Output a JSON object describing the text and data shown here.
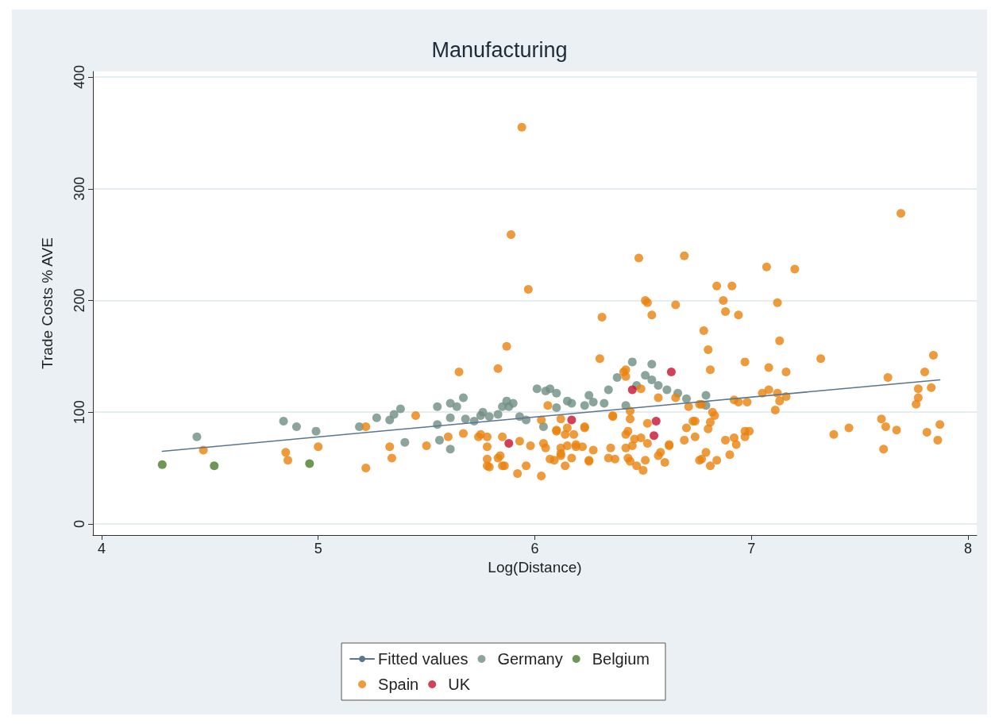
{
  "chart_data": {
    "type": "scatter",
    "title": "Manufacturing",
    "xlabel": "Log(Distance)",
    "ylabel": "Trade Costs % AVE",
    "xlim": [
      3.96,
      8.04
    ],
    "xticks": [
      4,
      5,
      6,
      7,
      8
    ],
    "ylim": [
      -10,
      405
    ],
    "yticks": [
      0,
      100,
      200,
      300,
      400
    ],
    "grid": "y",
    "legend": "bottom",
    "marker": "circle",
    "series": [
      {
        "name": "Fitted values",
        "type": "line",
        "marker": "none",
        "line_style": "solid",
        "color": "#5a7590",
        "x": [
          4.28,
          7.87
        ],
        "values": [
          65,
          129
        ]
      },
      {
        "name": "Germany",
        "color": "#6e8f85",
        "x": [
          4.44,
          4.84,
          4.9,
          4.99,
          5.19,
          5.27,
          5.33,
          5.35,
          5.38,
          5.4,
          5.55,
          5.55,
          5.61,
          5.61,
          5.64,
          5.67,
          5.68,
          5.72,
          5.75,
          5.76,
          5.79,
          5.83,
          5.85,
          5.87,
          5.88,
          5.9,
          5.93,
          5.96,
          6.01,
          6.05,
          6.07,
          6.1,
          6.04,
          6.1,
          6.15,
          6.17,
          6.23,
          6.25,
          6.27,
          6.32,
          6.34,
          6.38,
          6.42,
          6.45,
          6.47,
          6.51,
          6.54,
          6.54,
          6.57,
          6.61,
          6.66,
          6.7,
          6.79,
          6.79,
          5.56,
          5.61
        ],
        "values": [
          78,
          92,
          87,
          83,
          87,
          95,
          93,
          98,
          103,
          73,
          105,
          89,
          95,
          108,
          105,
          113,
          94,
          92,
          97,
          100,
          96,
          98,
          105,
          110,
          105,
          108,
          96,
          93,
          121,
          119,
          121,
          117,
          87,
          104,
          110,
          108,
          106,
          115,
          109,
          108,
          120,
          131,
          106,
          145,
          124,
          133,
          143,
          129,
          124,
          120,
          117,
          112,
          115,
          106,
          75,
          67
        ]
      },
      {
        "name": "Belgium",
        "color": "#4a7c2a",
        "x": [
          4.28,
          4.52,
          4.96
        ],
        "values": [
          53,
          52,
          54
        ]
      },
      {
        "name": "Spain",
        "color": "#e8820c",
        "x": [
          4.47,
          4.85,
          4.86,
          5.0,
          5.22,
          5.22,
          5.33,
          5.34,
          5.45,
          5.5,
          5.65,
          5.67,
          5.75,
          5.78,
          5.78,
          5.78,
          5.83,
          5.83,
          5.86,
          5.87,
          5.89,
          5.92,
          5.94,
          5.96,
          5.97,
          5.98,
          6.03,
          6.04,
          6.06,
          6.1,
          6.12,
          6.14,
          6.14,
          6.15,
          6.19,
          6.23,
          6.25,
          6.27,
          6.3,
          6.31,
          6.34,
          6.36,
          6.41,
          6.42,
          6.44,
          6.45,
          6.48,
          6.49,
          6.5,
          6.51,
          6.52,
          6.54,
          6.65,
          6.69,
          6.84,
          6.91,
          6.87,
          6.88,
          6.94,
          6.78,
          7.07,
          7.2,
          7.12,
          7.13,
          7.69,
          6.8,
          6.81,
          6.97,
          7.08,
          7.16,
          7.32,
          7.63,
          7.8,
          7.84,
          7.77,
          7.83,
          7.77,
          7.76,
          6.92,
          6.94,
          6.98,
          7.05,
          7.08,
          7.12,
          7.16,
          7.13,
          7.11,
          6.77,
          6.74,
          6.82,
          6.83,
          6.81,
          6.8,
          6.74,
          6.88,
          6.92,
          6.93,
          6.97,
          6.99,
          6.97,
          6.79,
          6.77,
          6.84,
          6.81,
          6.9,
          7.38,
          7.45,
          7.6,
          7.62,
          7.67,
          7.61,
          7.81,
          7.87,
          7.86,
          6.42,
          6.42,
          6.49,
          6.57,
          6.65,
          6.71,
          6.76,
          6.03,
          6.12,
          6.36,
          6.44,
          6.44,
          5.6,
          5.74,
          5.85,
          5.93,
          6.1,
          6.15,
          6.18,
          6.23,
          6.43,
          6.46,
          6.52,
          6.52,
          6.58,
          6.62,
          6.7,
          6.73,
          6.69,
          6.76,
          5.78,
          5.79,
          5.84,
          5.85,
          6.05,
          6.07,
          6.09,
          6.12,
          6.12,
          6.17,
          6.19,
          6.22,
          6.25,
          6.35,
          6.37,
          6.42,
          6.43,
          6.47,
          6.51,
          6.57,
          6.6,
          6.62
        ],
        "values": [
          66,
          64,
          57,
          69,
          50,
          87,
          69,
          59,
          97,
          70,
          136,
          81,
          80,
          78,
          69,
          52,
          59,
          139,
          52,
          159,
          259,
          45,
          355,
          52,
          210,
          70,
          43,
          72,
          106,
          84,
          61,
          52,
          80,
          70,
          71,
          87,
          56,
          66,
          148,
          185,
          59,
          97,
          136,
          80,
          56,
          70,
          238,
          77,
          48,
          200,
          198,
          187,
          196,
          240,
          213,
          213,
          200,
          190,
          187,
          173,
          230,
          228,
          198,
          164,
          278,
          156,
          138,
          145,
          140,
          136,
          148,
          131,
          136,
          151,
          121,
          122,
          113,
          107,
          111,
          109,
          109,
          117,
          120,
          117,
          114,
          110,
          102,
          107,
          92,
          100,
          97,
          91,
          85,
          78,
          75,
          77,
          71,
          83,
          83,
          78,
          64,
          58,
          57,
          52,
          62,
          80,
          86,
          94,
          87,
          84,
          67,
          82,
          89,
          75,
          138,
          132,
          121,
          113,
          113,
          105,
          107,
          93,
          94,
          96,
          101,
          94,
          78,
          78,
          78,
          74,
          83,
          86,
          80,
          86,
          83,
          76,
          90,
          72,
          64,
          71,
          86,
          92,
          75,
          57,
          58,
          51,
          61,
          52,
          68,
          58,
          57,
          68,
          63,
          59,
          69,
          69,
          57,
          68,
          58,
          68,
          59,
          52,
          57,
          61,
          55,
          70
        ]
      },
      {
        "name": "UK",
        "color": "#c8102e",
        "x": [
          5.88,
          6.17,
          6.45,
          6.56,
          6.55,
          6.63
        ],
        "values": [
          72,
          93,
          120,
          92,
          79,
          136
        ]
      }
    ]
  }
}
